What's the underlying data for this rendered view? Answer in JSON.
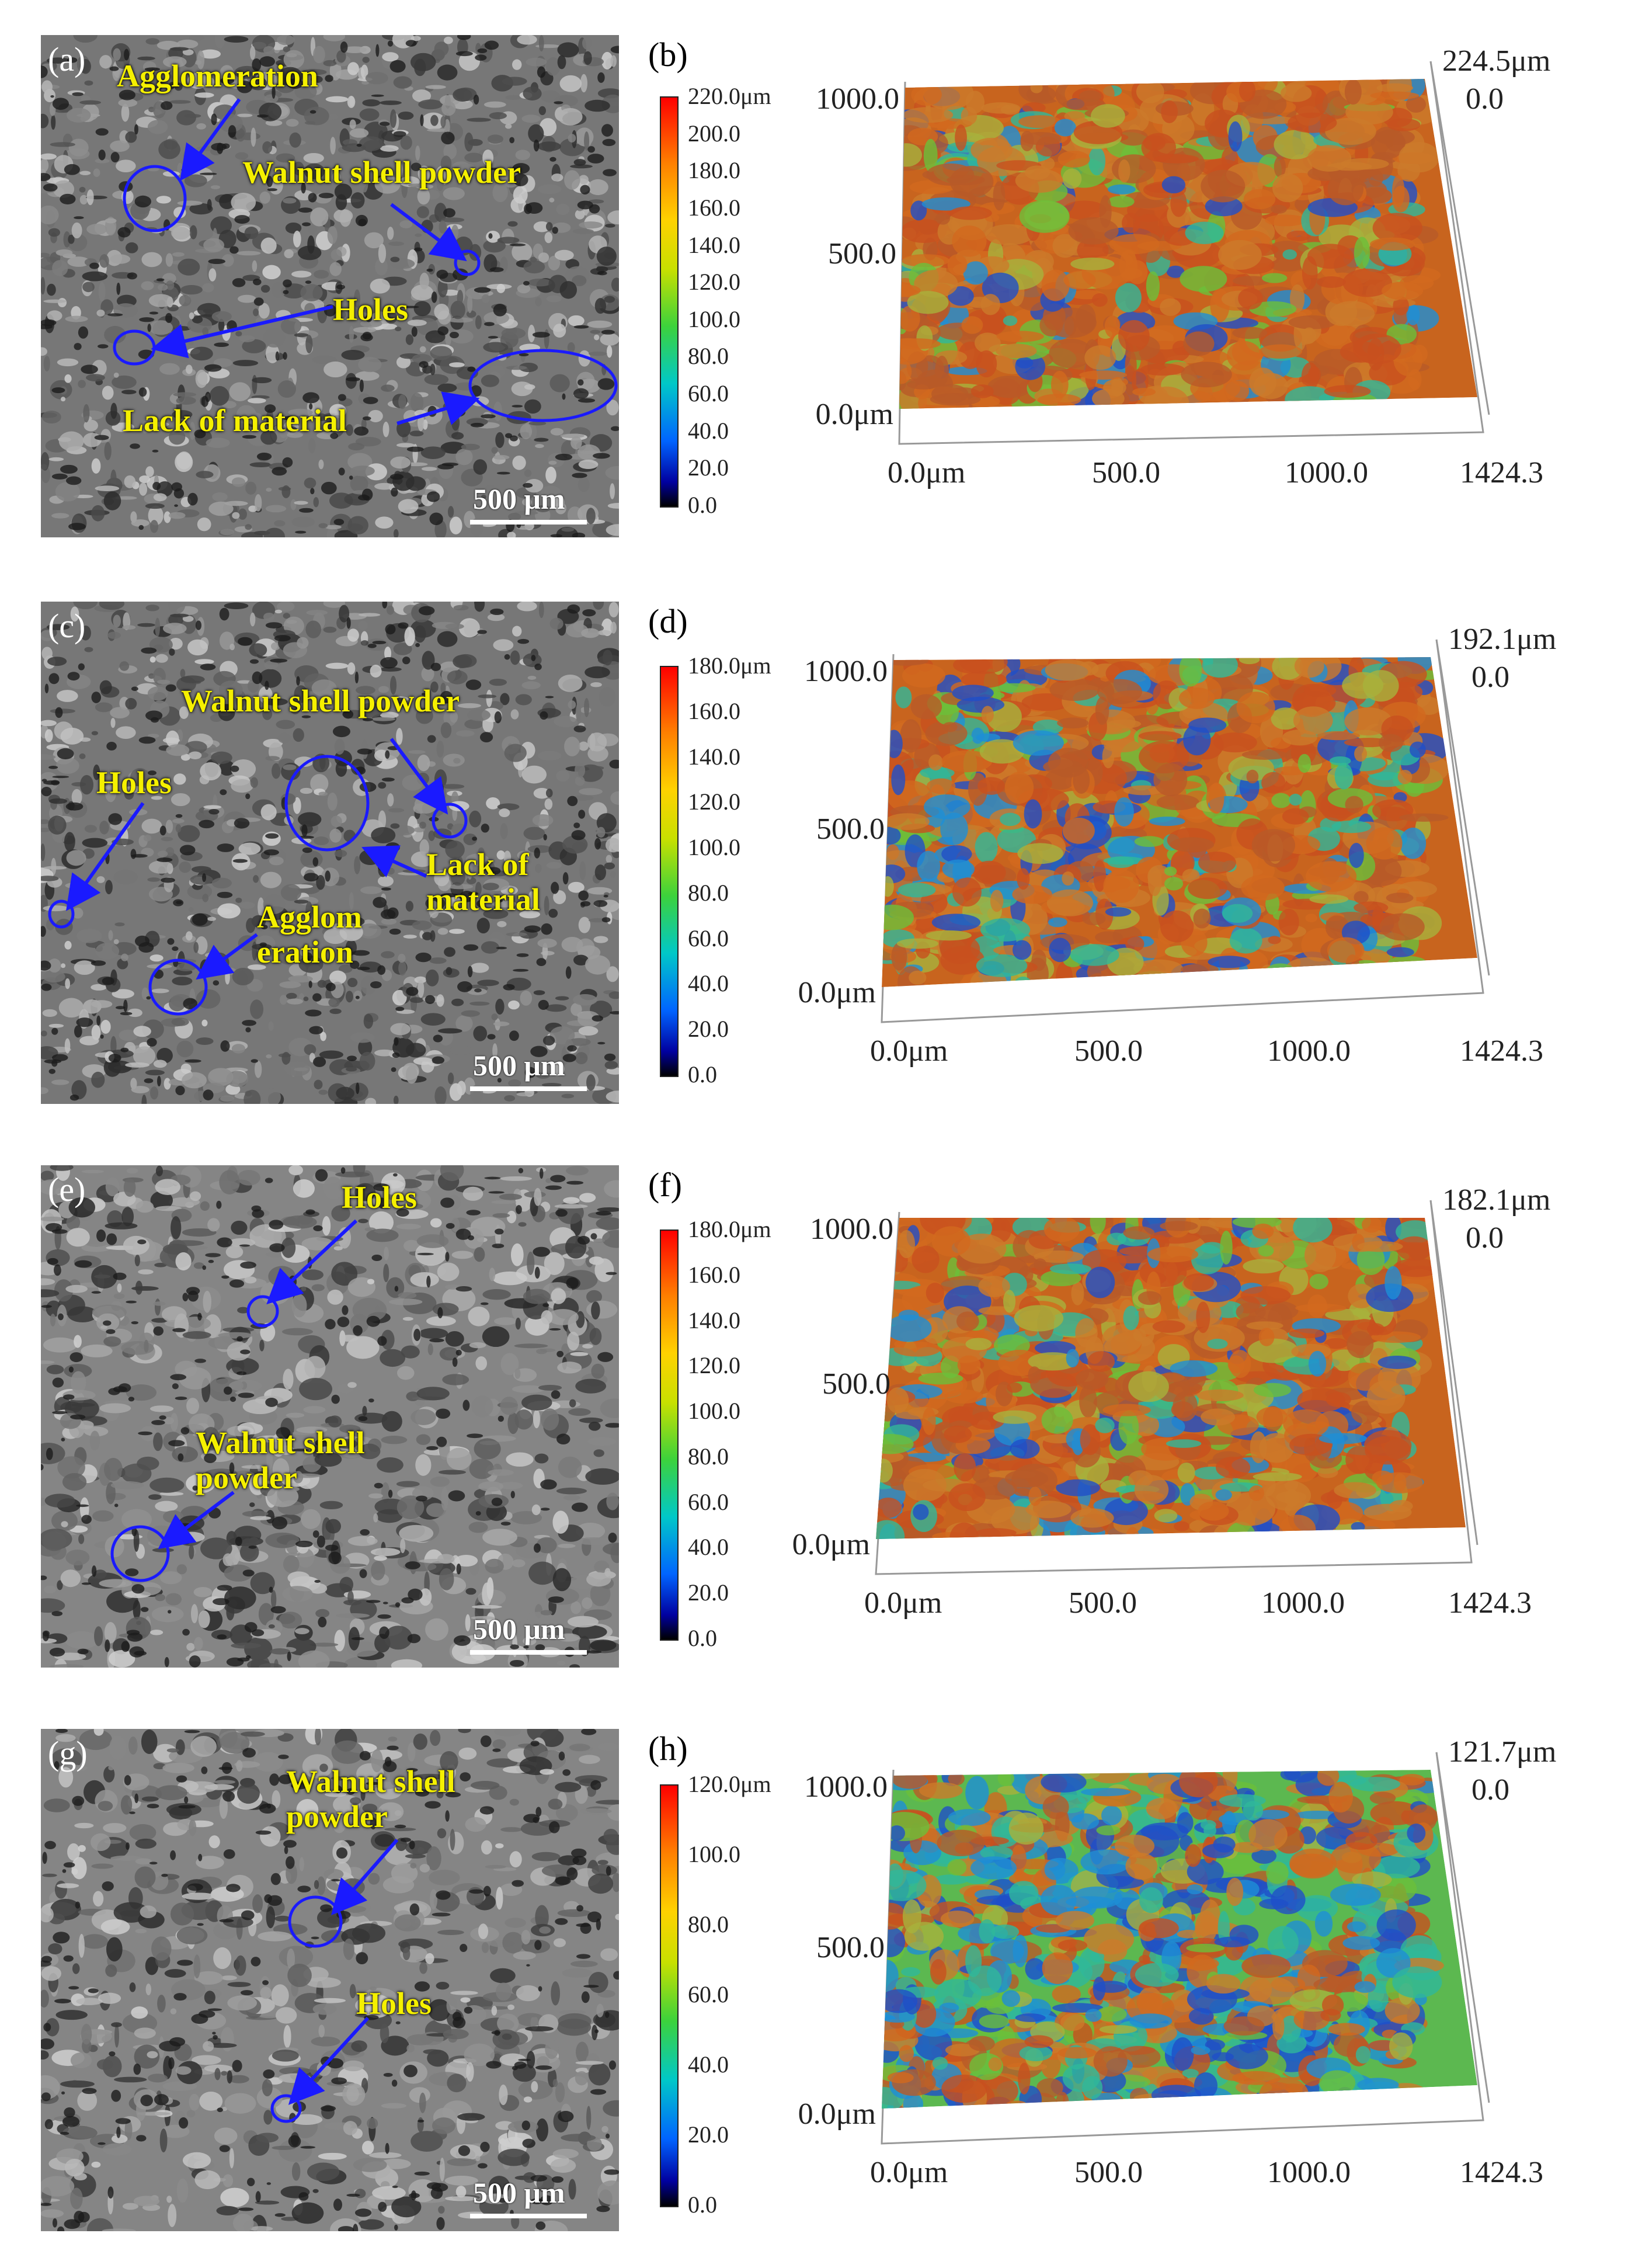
{
  "panels": [
    {
      "sem_letter": "(a)",
      "topo_letter": "(b)",
      "scale_label": "500 μm",
      "annotations": [
        "Agglomeration",
        "Walnut shell powder",
        "Holes",
        "Lack of material"
      ],
      "max_height": "224.5μm",
      "colorbar_ticks": [
        "220.0μm",
        "200.0",
        "180.0",
        "160.0",
        "140.0",
        "120.0",
        "100.0",
        "80.0",
        "60.0",
        "40.0",
        "20.0",
        "0.0"
      ],
      "y_axis": [
        "1000.0",
        "500.0",
        "0.0μm"
      ],
      "x_axis": [
        "0.0μm",
        "500.0",
        "1000.0",
        "1424.3"
      ],
      "z_zero": "0.0"
    },
    {
      "sem_letter": "(c)",
      "topo_letter": "(d)",
      "scale_label": "500 μm",
      "annotations": [
        "Walnut shell powder",
        "Holes",
        "Lack of\nmaterial",
        "Agglom\neration"
      ],
      "max_height": "192.1μm",
      "colorbar_ticks": [
        "180.0μm",
        "160.0",
        "140.0",
        "120.0",
        "100.0",
        "80.0",
        "60.0",
        "40.0",
        "20.0",
        "0.0"
      ],
      "y_axis": [
        "1000.0",
        "500.0",
        "0.0μm"
      ],
      "x_axis": [
        "0.0μm",
        "500.0",
        "1000.0",
        "1424.3"
      ],
      "z_zero": "0.0"
    },
    {
      "sem_letter": "(e)",
      "topo_letter": "(f)",
      "scale_label": "500 μm",
      "annotations": [
        "Holes",
        "Walnut shell\npowder"
      ],
      "max_height": "182.1μm",
      "colorbar_ticks": [
        "180.0μm",
        "160.0",
        "140.0",
        "120.0",
        "100.0",
        "80.0",
        "60.0",
        "40.0",
        "20.0",
        "0.0"
      ],
      "y_axis": [
        "1000.0",
        "500.0",
        "0.0μm"
      ],
      "x_axis": [
        "0.0μm",
        "500.0",
        "1000.0",
        "1424.3"
      ],
      "z_zero": "0.0"
    },
    {
      "sem_letter": "(g)",
      "topo_letter": "(h)",
      "scale_label": "500 μm",
      "annotations": [
        "Walnut shell\npowder",
        "Holes"
      ],
      "max_height": "121.7μm",
      "colorbar_ticks": [
        "120.0μm",
        "100.0",
        "80.0",
        "60.0",
        "40.0",
        "20.0",
        "0.0"
      ],
      "y_axis": [
        "1000.0",
        "500.0",
        "0.0μm"
      ],
      "x_axis": [
        "0.0μm",
        "500.0",
        "1000.0",
        "1424.3"
      ],
      "z_zero": "0.0"
    }
  ],
  "colors": {
    "annotation_text": "#f5f000",
    "annotation_marker": "#1a1aff"
  }
}
